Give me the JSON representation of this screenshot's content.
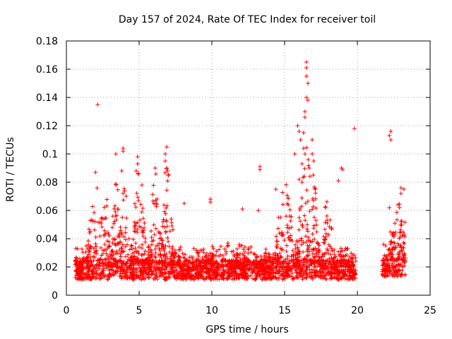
{
  "chart_data": {
    "type": "scatter",
    "title": "Day 157 of 2024, Rate Of TEC Index for receiver toil",
    "xlabel": "GPS time / hours",
    "ylabel": "ROTI / TECUs",
    "xlim": [
      0,
      25
    ],
    "ylim": [
      0,
      0.18
    ],
    "x_ticks": [
      0,
      5,
      10,
      15,
      20,
      25
    ],
    "x_tick_labels": [
      "0",
      "5",
      "10",
      "15",
      "20",
      "25"
    ],
    "y_ticks": [
      0,
      0.02,
      0.04,
      0.06,
      0.08,
      0.1,
      0.12,
      0.14,
      0.16,
      0.18
    ],
    "y_tick_labels": [
      "0",
      "0.02",
      "0.04",
      "0.06",
      "0.08",
      "0.1",
      "0.12",
      "0.14",
      "0.16",
      "0.18"
    ],
    "grid": true,
    "marker": "+",
    "color": "#ff0000",
    "series": [
      {
        "name": "ROTI",
        "segments": [
          {
            "start": 0.6,
            "end": 19.9,
            "base": 0.018
          },
          {
            "start": 21.7,
            "end": 23.3,
            "base": 0.02
          }
        ],
        "activity_windows": [
          {
            "center": 2.0,
            "width": 0.6,
            "peak": 0.07
          },
          {
            "center": 2.6,
            "width": 0.6,
            "peak": 0.06
          },
          {
            "center": 3.4,
            "width": 0.5,
            "peak": 0.065
          },
          {
            "center": 4.0,
            "width": 0.5,
            "peak": 0.07
          },
          {
            "center": 5.0,
            "width": 0.6,
            "peak": 0.075
          },
          {
            "center": 6.1,
            "width": 0.5,
            "peak": 0.07
          },
          {
            "center": 6.9,
            "width": 0.6,
            "peak": 0.08
          },
          {
            "center": 15.0,
            "width": 0.8,
            "peak": 0.07
          },
          {
            "center": 16.5,
            "width": 0.9,
            "peak": 0.09
          },
          {
            "center": 17.0,
            "width": 0.5,
            "peak": 0.07
          },
          {
            "center": 18.0,
            "width": 0.5,
            "peak": 0.06
          },
          {
            "center": 22.8,
            "width": 0.7,
            "peak": 0.05
          }
        ],
        "notable_points": [
          [
            2.15,
            0.135
          ],
          [
            2.0,
            0.087
          ],
          [
            3.4,
            0.1
          ],
          [
            3.9,
            0.104
          ],
          [
            3.9,
            0.102
          ],
          [
            3.8,
            0.088
          ],
          [
            4.9,
            0.098
          ],
          [
            4.9,
            0.093
          ],
          [
            4.8,
            0.088
          ],
          [
            5.2,
            0.078
          ],
          [
            6.9,
            0.105
          ],
          [
            6.8,
            0.1
          ],
          [
            6.8,
            0.095
          ],
          [
            6.9,
            0.09
          ],
          [
            7.0,
            0.085
          ],
          [
            6.1,
            0.09
          ],
          [
            8.1,
            0.065
          ],
          [
            9.9,
            0.068
          ],
          [
            9.9,
            0.066
          ],
          [
            12.1,
            0.061
          ],
          [
            13.3,
            0.091
          ],
          [
            13.3,
            0.089
          ],
          [
            13.2,
            0.06
          ],
          [
            14.4,
            0.075
          ],
          [
            15.7,
            0.1
          ],
          [
            15.9,
            0.12
          ],
          [
            16.0,
            0.116
          ],
          [
            16.1,
            0.11
          ],
          [
            16.3,
            0.115
          ],
          [
            16.4,
            0.1
          ],
          [
            16.4,
            0.126
          ],
          [
            16.4,
            0.13
          ],
          [
            16.5,
            0.165
          ],
          [
            16.5,
            0.161
          ],
          [
            16.5,
            0.155
          ],
          [
            16.6,
            0.15
          ],
          [
            16.5,
            0.14
          ],
          [
            16.6,
            0.138
          ],
          [
            16.3,
            0.104
          ],
          [
            16.2,
            0.093
          ],
          [
            16.7,
            0.09
          ],
          [
            16.9,
            0.11
          ],
          [
            16.9,
            0.1
          ],
          [
            17.0,
            0.095
          ],
          [
            16.0,
            0.082
          ],
          [
            16.2,
            0.08
          ],
          [
            17.1,
            0.075
          ],
          [
            18.7,
            0.081
          ],
          [
            18.9,
            0.09
          ],
          [
            19.0,
            0.089
          ],
          [
            17.8,
            0.062
          ],
          [
            19.8,
            0.118
          ],
          [
            22.3,
            0.116
          ],
          [
            22.2,
            0.113
          ],
          [
            22.3,
            0.11
          ],
          [
            23.0,
            0.076
          ],
          [
            23.2,
            0.075
          ],
          [
            23.0,
            0.072
          ],
          [
            22.9,
            0.062
          ],
          [
            22.2,
            0.062
          ],
          [
            21.8,
            0.036
          ]
        ]
      }
    ]
  }
}
